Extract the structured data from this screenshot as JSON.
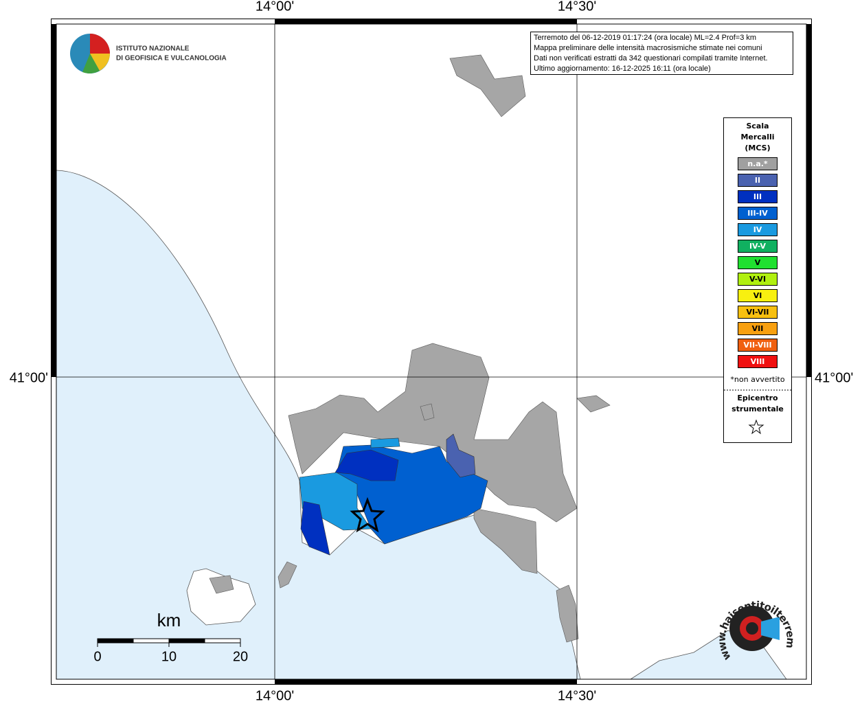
{
  "map": {
    "coord_labels": {
      "top": [
        "14°00'",
        "14°30'"
      ],
      "bottom": [
        "14°00'",
        "14°30'"
      ],
      "left": [
        "41°00'"
      ],
      "right": [
        "41°00'"
      ]
    },
    "logo": {
      "line1": "ISTITUTO NAZIONALE",
      "line2": "DI GEOFISICA E VULCANOLOGIA"
    },
    "info": [
      "Terremoto del 06-12-2019 01:17:24 (ora locale) ML=2.4 Prof=3 km",
      "Mappa preliminare delle intensità macrosismiche stimate nei comuni",
      "Dati non verificati estratti da 342 questionari compilati tramite Internet.",
      "Ultimo aggiornamento: 16-12-2025 16:11 (ora locale)"
    ],
    "legend": {
      "title": [
        "Scala",
        "Mercalli",
        "(MCS)"
      ],
      "items": [
        {
          "label": "n.a.*",
          "color": "#a0a0a0"
        },
        {
          "label": "II",
          "color": "#4a62b0"
        },
        {
          "label": "III",
          "color": "#0030c0"
        },
        {
          "label": "III-IV",
          "color": "#0060d0"
        },
        {
          "label": "IV",
          "color": "#1a9ae0"
        },
        {
          "label": "IV-V",
          "color": "#10b060"
        },
        {
          "label": "V",
          "color": "#20e030"
        },
        {
          "label": "V-VI",
          "color": "#b0f010"
        },
        {
          "label": "VI",
          "color": "#f8f010"
        },
        {
          "label": "VI-VII",
          "color": "#f8c010"
        },
        {
          "label": "VII",
          "color": "#f8a010"
        },
        {
          "label": "VII-VIII",
          "color": "#f06010"
        },
        {
          "label": "VIII",
          "color": "#f01010"
        }
      ],
      "note": "*non avvertito",
      "epicenter": [
        "Epicentro",
        "strumentale"
      ]
    },
    "scale_bar": {
      "unit": "km",
      "ticks": [
        0,
        10,
        20
      ]
    },
    "watermark": "www.haisentitoilterremoto.it"
  }
}
